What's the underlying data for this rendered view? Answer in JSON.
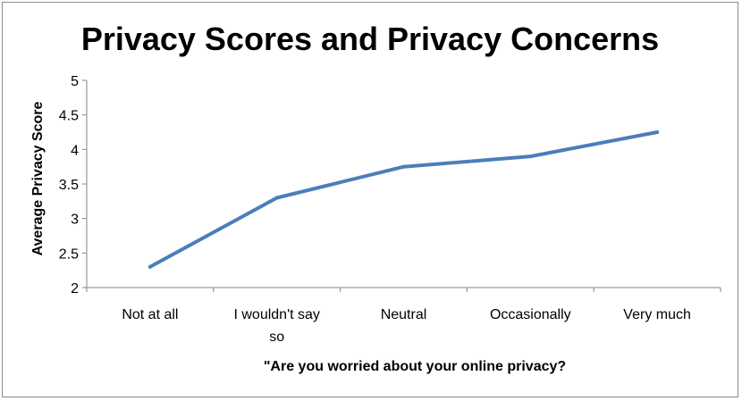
{
  "chart_data": {
    "type": "line",
    "title": "Privacy Scores and Privacy Concerns",
    "xlabel": "\"Are you worried about your online privacy?",
    "ylabel": "Average Privacy Score",
    "categories": [
      "Not at all",
      "I wouldn't say so",
      "Neutral",
      "Occasionally",
      "Very much"
    ],
    "category_lines": [
      [
        "Not at all"
      ],
      [
        "I wouldn't say",
        "so"
      ],
      [
        "Neutral"
      ],
      [
        "Occasionally"
      ],
      [
        "Very much"
      ]
    ],
    "series": [
      {
        "values": [
          2.3,
          3.3,
          3.75,
          3.9,
          4.25
        ]
      }
    ],
    "y_ticks": [
      "2",
      "2.5",
      "3",
      "3.5",
      "4",
      "4.5",
      "5"
    ],
    "ylim": [
      2,
      5
    ],
    "grid": false,
    "legend": "none",
    "line_color": "#4a7ebb",
    "axis_color": "#868686"
  }
}
